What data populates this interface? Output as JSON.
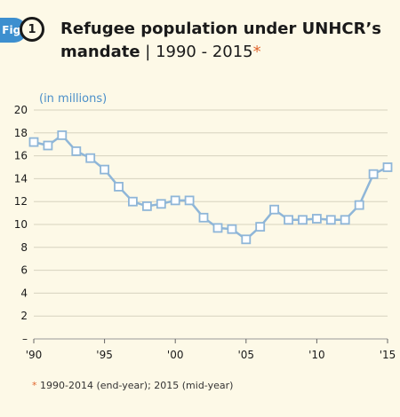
{
  "header": {
    "fig_label": "Fig.",
    "fig_number": "1",
    "title_main": "Refugee population under UNHCR’s mandate",
    "title_sub": " | 1990 - 2015",
    "title_star": "*"
  },
  "footnote": {
    "star": "*",
    "text": " 1990-2014 (end-year); 2015 (mid-year)"
  },
  "colors": {
    "background": "#fdf9e7",
    "accent": "#3d8fcf",
    "line": "#8fb6d8",
    "marker_fill": "#ffffff",
    "marker_stroke": "#8fb6d8",
    "grid": "#d6d2bf",
    "star": "#e0662e"
  },
  "chart_data": {
    "type": "line",
    "title": "Refugee population under UNHCR’s mandate | 1990 - 2015",
    "ylabel": "(in millions)",
    "xlabel": "",
    "x": [
      1990,
      1991,
      1992,
      1993,
      1994,
      1995,
      1996,
      1997,
      1998,
      1999,
      2000,
      2001,
      2002,
      2003,
      2004,
      2005,
      2006,
      2007,
      2008,
      2009,
      2010,
      2011,
      2012,
      2013,
      2014,
      2015
    ],
    "series": [
      {
        "values": [
          17.2,
          16.9,
          17.8,
          16.4,
          15.8,
          14.8,
          13.3,
          12.0,
          11.6,
          11.8,
          12.1,
          12.1,
          10.6,
          9.7,
          9.6,
          8.7,
          9.8,
          11.3,
          10.4,
          10.4,
          10.5,
          10.4,
          10.4,
          11.7,
          14.4,
          15.0
        ]
      }
    ],
    "ylim": [
      0,
      20
    ],
    "yticks": [
      0,
      2,
      4,
      6,
      8,
      10,
      12,
      14,
      16,
      18,
      20
    ],
    "ytick_labels": [
      "–",
      "2",
      "4",
      "6",
      "8",
      "10",
      "12",
      "14",
      "16",
      "18",
      "20"
    ],
    "xticks": [
      1990,
      1995,
      2000,
      2005,
      2010,
      2015
    ],
    "xtick_labels": [
      "'90",
      "'95",
      "'00",
      "'05",
      "'10",
      "'15"
    ],
    "grid": true
  }
}
